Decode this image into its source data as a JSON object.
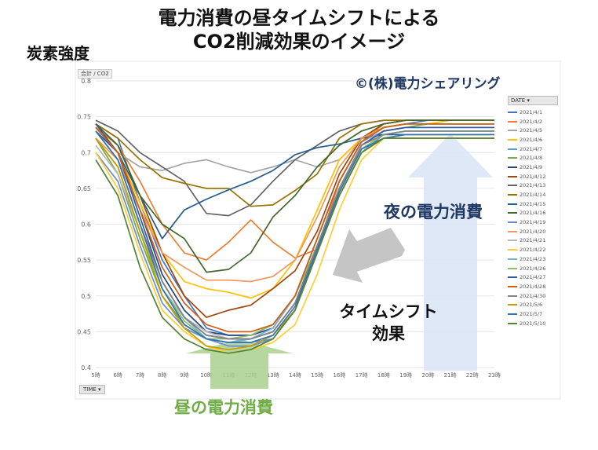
{
  "page": {
    "title_line1": "電力消費の昼タイムシフトによる",
    "title_line2": "CO2削減効果のイメージ",
    "ylabel": "炭素強度",
    "copyright": "©(株)電力シェアリング",
    "night_label": "夜の電力消費",
    "shift_line1": "タイムシフト",
    "shift_line2": "効果",
    "day_label": "昼の電力消費",
    "axis_tag": "合計 / CO2",
    "time_button": "TIME",
    "legend_button": "DATE"
  },
  "chart_data": {
    "type": "line",
    "xlabel": "",
    "ylabel": "炭素強度",
    "x": [
      "5時",
      "6時",
      "7時",
      "8時",
      "9時",
      "10時",
      "11時",
      "12時",
      "13時",
      "14時",
      "15時",
      "16時",
      "17時",
      "18時",
      "19時",
      "20時",
      "21時",
      "22時",
      "23時"
    ],
    "ylim": [
      0.4,
      0.8
    ],
    "yticks": [
      0.4,
      0.45,
      0.5,
      0.55,
      0.6,
      0.65,
      0.7,
      0.75,
      0.8
    ],
    "grid": true,
    "legend_position": "right",
    "series": [
      {
        "name": "2021/4/1",
        "color": "#4472c4",
        "values": [
          0.74,
          0.72,
          0.63,
          0.55,
          0.5,
          0.455,
          0.445,
          0.445,
          0.46,
          0.5,
          0.58,
          0.66,
          0.715,
          0.735,
          0.74,
          0.745,
          0.745,
          0.745,
          0.745
        ]
      },
      {
        "name": "2021/4/2",
        "color": "#ed7d31",
        "values": [
          0.735,
          0.71,
          0.66,
          0.6,
          0.56,
          0.55,
          0.575,
          0.606,
          0.575,
          0.553,
          0.565,
          0.66,
          0.715,
          0.74,
          0.745,
          0.745,
          0.745,
          0.745,
          0.745
        ]
      },
      {
        "name": "2021/4/5",
        "color": "#a5a5a5",
        "values": [
          0.735,
          0.7,
          0.68,
          0.675,
          0.685,
          0.69,
          0.68,
          0.672,
          0.68,
          0.69,
          0.68,
          0.69,
          0.72,
          0.735,
          0.74,
          0.74,
          0.74,
          0.74,
          0.74
        ]
      },
      {
        "name": "2021/4/6",
        "color": "#ffc000",
        "values": [
          0.73,
          0.7,
          0.63,
          0.56,
          0.52,
          0.51,
          0.505,
          0.497,
          0.51,
          0.55,
          0.62,
          0.69,
          0.72,
          0.735,
          0.74,
          0.74,
          0.745,
          0.745,
          0.745
        ]
      },
      {
        "name": "2021/4/7",
        "color": "#5b9bd5",
        "values": [
          0.72,
          0.68,
          0.59,
          0.5,
          0.46,
          0.44,
          0.435,
          0.435,
          0.44,
          0.48,
          0.56,
          0.65,
          0.71,
          0.73,
          0.735,
          0.735,
          0.735,
          0.735,
          0.735
        ]
      },
      {
        "name": "2021/4/8",
        "color": "#70ad47",
        "values": [
          0.72,
          0.67,
          0.58,
          0.5,
          0.46,
          0.44,
          0.435,
          0.44,
          0.45,
          0.49,
          0.57,
          0.65,
          0.71,
          0.73,
          0.735,
          0.74,
          0.74,
          0.74,
          0.74
        ]
      },
      {
        "name": "2021/4/9",
        "color": "#264478",
        "values": [
          0.735,
          0.7,
          0.62,
          0.53,
          0.48,
          0.45,
          0.445,
          0.445,
          0.455,
          0.5,
          0.58,
          0.66,
          0.715,
          0.735,
          0.74,
          0.74,
          0.74,
          0.74,
          0.74
        ]
      },
      {
        "name": "2021/4/12",
        "color": "#9e480e",
        "values": [
          0.74,
          0.71,
          0.64,
          0.56,
          0.5,
          0.47,
          0.48,
          0.487,
          0.51,
          0.535,
          0.59,
          0.67,
          0.72,
          0.74,
          0.745,
          0.745,
          0.745,
          0.745,
          0.745
        ]
      },
      {
        "name": "2021/4/13",
        "color": "#636363",
        "values": [
          0.745,
          0.73,
          0.7,
          0.68,
          0.66,
          0.615,
          0.612,
          0.627,
          0.66,
          0.69,
          0.71,
          0.73,
          0.74,
          0.745,
          0.745,
          0.745,
          0.745,
          0.745,
          0.745
        ]
      },
      {
        "name": "2021/4/14",
        "color": "#997300",
        "values": [
          0.74,
          0.72,
          0.69,
          0.665,
          0.657,
          0.65,
          0.65,
          0.625,
          0.627,
          0.647,
          0.67,
          0.72,
          0.74,
          0.745,
          0.745,
          0.745,
          0.745,
          0.745,
          0.745
        ]
      },
      {
        "name": "2021/4/15",
        "color": "#255e91",
        "values": [
          0.73,
          0.7,
          0.64,
          0.58,
          0.62,
          0.635,
          0.648,
          0.66,
          0.675,
          0.697,
          0.707,
          0.712,
          0.72,
          0.725,
          0.725,
          0.725,
          0.725,
          0.725,
          0.725
        ]
      },
      {
        "name": "2021/4/16",
        "color": "#43682b",
        "values": [
          0.74,
          0.71,
          0.64,
          0.6,
          0.58,
          0.533,
          0.537,
          0.56,
          0.61,
          0.64,
          0.68,
          0.71,
          0.73,
          0.74,
          0.745,
          0.745,
          0.745,
          0.745,
          0.745
        ]
      },
      {
        "name": "2021/4/19",
        "color": "#698ed0",
        "values": [
          0.7,
          0.66,
          0.57,
          0.49,
          0.455,
          0.44,
          0.43,
          0.43,
          0.44,
          0.48,
          0.56,
          0.64,
          0.7,
          0.725,
          0.73,
          0.73,
          0.73,
          0.73,
          0.73
        ]
      },
      {
        "name": "2021/4/20",
        "color": "#f1975a",
        "values": [
          0.72,
          0.69,
          0.62,
          0.56,
          0.54,
          0.522,
          0.522,
          0.52,
          0.527,
          0.55,
          0.61,
          0.68,
          0.72,
          0.735,
          0.74,
          0.74,
          0.74,
          0.74,
          0.74
        ]
      },
      {
        "name": "2021/4/21",
        "color": "#b7b7b7",
        "values": [
          0.71,
          0.67,
          0.59,
          0.51,
          0.47,
          0.45,
          0.44,
          0.44,
          0.45,
          0.49,
          0.57,
          0.65,
          0.705,
          0.72,
          0.725,
          0.725,
          0.725,
          0.725,
          0.725
        ]
      },
      {
        "name": "2021/4/22",
        "color": "#ffcd33",
        "values": [
          0.7,
          0.65,
          0.56,
          0.48,
          0.45,
          0.43,
          0.42,
          0.425,
          0.435,
          0.46,
          0.53,
          0.62,
          0.69,
          0.72,
          0.725,
          0.725,
          0.725,
          0.725,
          0.725
        ]
      },
      {
        "name": "2021/4/23",
        "color": "#7cafdd",
        "values": [
          0.73,
          0.69,
          0.6,
          0.52,
          0.47,
          0.44,
          0.435,
          0.44,
          0.455,
          0.5,
          0.58,
          0.66,
          0.715,
          0.73,
          0.735,
          0.735,
          0.735,
          0.735,
          0.735
        ]
      },
      {
        "name": "2021/4/26",
        "color": "#8cc168",
        "values": [
          0.72,
          0.68,
          0.59,
          0.51,
          0.465,
          0.44,
          0.44,
          0.445,
          0.46,
          0.5,
          0.57,
          0.65,
          0.705,
          0.725,
          0.73,
          0.73,
          0.73,
          0.73,
          0.73
        ]
      },
      {
        "name": "2021/4/27",
        "color": "#335aa1",
        "values": [
          0.74,
          0.7,
          0.61,
          0.52,
          0.47,
          0.445,
          0.44,
          0.44,
          0.45,
          0.49,
          0.57,
          0.65,
          0.71,
          0.73,
          0.735,
          0.735,
          0.735,
          0.735,
          0.735
        ]
      },
      {
        "name": "2021/4/28",
        "color": "#d26012",
        "values": [
          0.735,
          0.7,
          0.62,
          0.54,
          0.49,
          0.46,
          0.45,
          0.45,
          0.46,
          0.5,
          0.58,
          0.66,
          0.715,
          0.735,
          0.74,
          0.74,
          0.74,
          0.74,
          0.74
        ]
      },
      {
        "name": "2021/4/30",
        "color": "#848484",
        "values": [
          0.73,
          0.69,
          0.6,
          0.52,
          0.47,
          0.445,
          0.44,
          0.44,
          0.45,
          0.49,
          0.57,
          0.65,
          0.71,
          0.725,
          0.73,
          0.73,
          0.73,
          0.73,
          0.73
        ]
      },
      {
        "name": "2021/5/6",
        "color": "#cc9a00",
        "values": [
          0.72,
          0.68,
          0.59,
          0.5,
          0.455,
          0.43,
          0.425,
          0.43,
          0.445,
          0.48,
          0.56,
          0.64,
          0.7,
          0.72,
          0.72,
          0.72,
          0.72,
          0.72,
          0.72
        ]
      },
      {
        "name": "2021/5/7",
        "color": "#2f75b5",
        "values": [
          0.73,
          0.69,
          0.6,
          0.51,
          0.46,
          0.44,
          0.435,
          0.435,
          0.445,
          0.485,
          0.565,
          0.645,
          0.705,
          0.72,
          0.725,
          0.725,
          0.725,
          0.725,
          0.725
        ]
      },
      {
        "name": "2021/5/10",
        "color": "#548235",
        "values": [
          0.69,
          0.64,
          0.54,
          0.47,
          0.44,
          0.425,
          0.42,
          0.425,
          0.44,
          0.48,
          0.56,
          0.64,
          0.7,
          0.72,
          0.72,
          0.72,
          0.72,
          0.72,
          0.72
        ]
      }
    ]
  }
}
